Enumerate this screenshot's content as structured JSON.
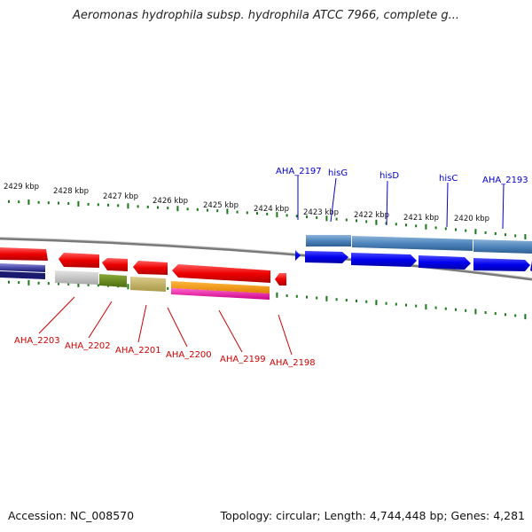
{
  "title": "Aeromonas hydrophila subsp. hydrophila ATCC 7966, complete g...",
  "footer": {
    "accession": "Accession: NC_008570",
    "summary": "Topology: circular; Length: 4,744,448 bp; Genes: 4,281"
  },
  "colors": {
    "tick": "#1a7a1a",
    "forward_label": "#0000c8",
    "reverse_label": "#d00000",
    "backbone": "#7a7a7a"
  },
  "ruler": [
    "2429 kbp",
    "2428 kbp",
    "2427 kbp",
    "2426 kbp",
    "2425 kbp",
    "2424 kbp",
    "2423 kbp",
    "2422 kbp",
    "2421 kbp",
    "2420 kbp"
  ],
  "forward_genes": [
    "AHA_2197",
    "hisG",
    "hisD",
    "hisC",
    "AHA_2193"
  ],
  "reverse_genes": [
    "AHA_2203",
    "AHA_2202",
    "AHA_2201",
    "AHA_2200",
    "AHA_2199",
    "AHA_2198"
  ]
}
